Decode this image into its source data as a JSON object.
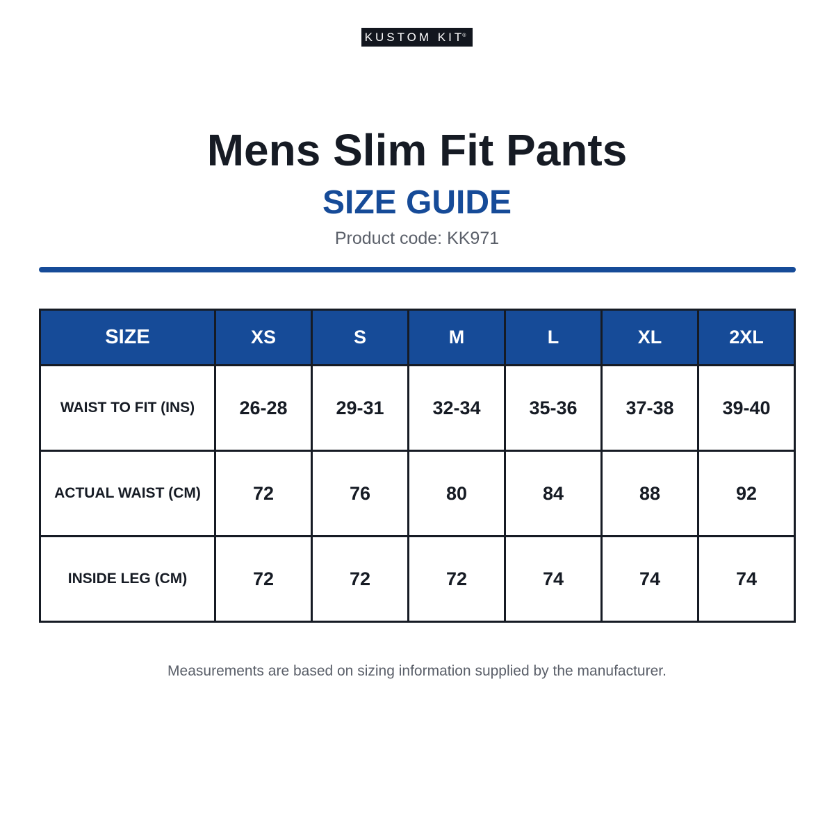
{
  "brand": {
    "logo_text": "KUSTOM KIT",
    "logo_mark": "®"
  },
  "header": {
    "title": "Mens Slim Fit Pants",
    "subtitle": "SIZE GUIDE",
    "product_code": "Product code: KK971"
  },
  "colors": {
    "accent": "#164b98",
    "text": "#161b24",
    "muted": "#5a5f69",
    "logo_bg": "#12161e"
  },
  "table": {
    "header_label": "SIZE",
    "sizes": [
      "XS",
      "S",
      "M",
      "L",
      "XL",
      "2XL"
    ],
    "rows": [
      {
        "label": "WAIST TO FIT (INS)",
        "values": [
          "26-28",
          "29-31",
          "32-34",
          "35-36",
          "37-38",
          "39-40"
        ]
      },
      {
        "label": "ACTUAL WAIST (CM)",
        "values": [
          "72",
          "76",
          "80",
          "84",
          "88",
          "92"
        ]
      },
      {
        "label": "INSIDE LEG (CM)",
        "values": [
          "72",
          "72",
          "72",
          "74",
          "74",
          "74"
        ]
      }
    ]
  },
  "footer": {
    "note": "Measurements are based on sizing information supplied by the manufacturer."
  }
}
